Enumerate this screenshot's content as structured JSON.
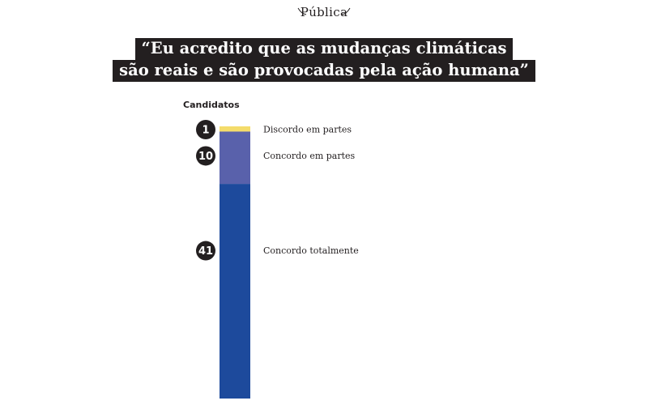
{
  "brand": {
    "logo_text": "Pública"
  },
  "chart_data": {
    "type": "bar",
    "stacked": true,
    "title_lines": [
      "“Eu acredito que as mudanças climáticas",
      "são reais e são provocadas pela ação humana”"
    ],
    "ylabel": "Candidatos",
    "series": [
      {
        "name": "Discordo em partes",
        "value": 1,
        "color": "#f4dc6b"
      },
      {
        "name": "Concordo em partes",
        "value": 10,
        "color": "#5961ab"
      },
      {
        "name": "Concordo totalmente",
        "value": 41,
        "color": "#1d4a9c"
      }
    ],
    "total": 52,
    "badge_color": "#231f20"
  }
}
